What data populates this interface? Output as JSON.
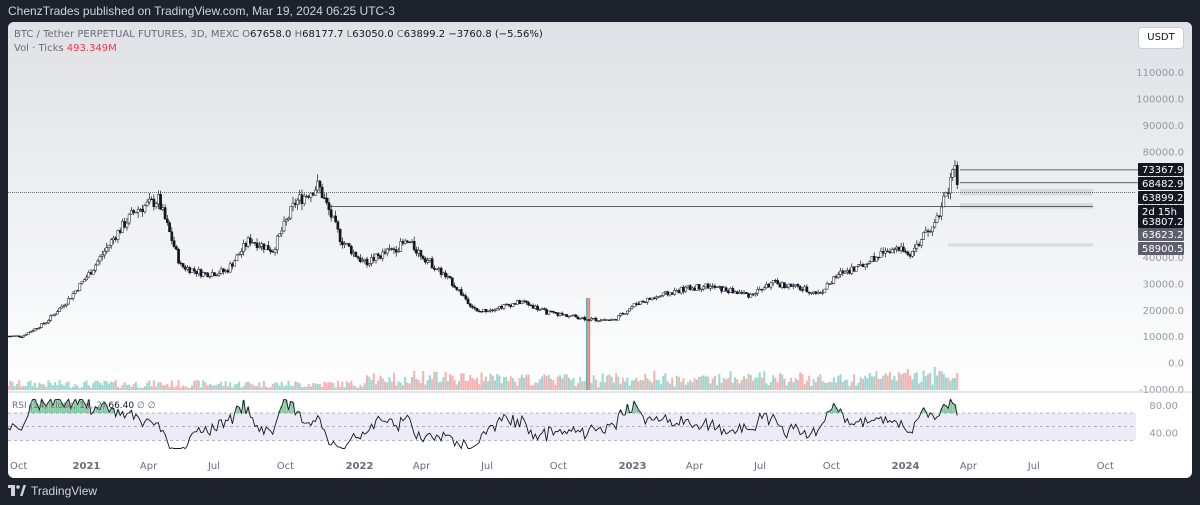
{
  "publisher": "ChenzTrades published on TradingView.com, Mar 19, 2024 06:25 UTC-3",
  "legend": {
    "symbol": "BTC / Tether PERPETUAL FUTURES, 3D, MEXC",
    "open_label": "O",
    "open": "67658.0",
    "high_label": "H",
    "high": "68177.7",
    "low_label": "L",
    "low": "63050.0",
    "close_label": "C",
    "close": "63899.2",
    "change": "−3760.8 (−5.56%)",
    "vol_label": "Vol · Ticks",
    "vol_value": "493.349M"
  },
  "currency_button": "USDT",
  "rsi_legend": {
    "label": "RSI (14, close, 14, 2)",
    "value": "66.40",
    "extra": "∅ ∅"
  },
  "footer_brand": "TradingView",
  "colors": {
    "up": "#26a69a",
    "down": "#ef5350",
    "candle": "#131722",
    "bg_top": "#dfe1e6",
    "bg_bottom": "#ffffff",
    "rsi_band": "#e5e2f5",
    "rsi_fill": "#55b27a",
    "tag_bg": "#131722",
    "tag_gray": "#5d606b"
  },
  "chart_data": {
    "type": "candlestick",
    "symbol": "BTC / Tether PERPETUAL FUTURES",
    "timeframe": "3D",
    "y_axis_ticks": [
      "110000.0",
      "100000.0",
      "90000.0",
      "80000.0",
      "70000.0",
      "60000.0",
      "50000.0",
      "40000.0",
      "30000.0",
      "20000.0",
      "10000.0",
      "0.0",
      "-10000.0"
    ],
    "ylim": [
      -10000,
      118000
    ],
    "x_axis_ticks": [
      "Oct",
      "2021",
      "Apr",
      "Jul",
      "Oct",
      "2022",
      "Apr",
      "Jul",
      "Oct",
      "2023",
      "Apr",
      "Jul",
      "Oct",
      "2024",
      "Apr",
      "Jul",
      "Oct"
    ],
    "price_tags": [
      {
        "value": "73367.9",
        "style": "dark"
      },
      {
        "value": "68482.9",
        "style": "dark"
      },
      {
        "value": "63899.2",
        "style": "dark"
      },
      {
        "value": "2d 15h",
        "style": "dark"
      },
      {
        "value": "63807.2",
        "style": "dark"
      },
      {
        "value": "63623.2",
        "style": "gray"
      },
      {
        "value": "58900.5",
        "style": "gray"
      }
    ],
    "horizontal_levels": [
      73367.9,
      68482.9,
      64000,
      59500
    ],
    "zones": [
      {
        "from": 63700,
        "to": 66200
      },
      {
        "from": 58700,
        "to": 60800
      },
      {
        "from": 44500,
        "to": 45500
      }
    ],
    "price_path": [
      [
        "2020-10",
        10400
      ],
      [
        "2020-11",
        15500
      ],
      [
        "2020-12",
        24000
      ],
      [
        "2021-01",
        35000
      ],
      [
        "2021-02",
        48000
      ],
      [
        "2021-03",
        58000
      ],
      [
        "2021-04",
        62000
      ],
      [
        "2021-05",
        37000
      ],
      [
        "2021-06",
        34000
      ],
      [
        "2021-07",
        35000
      ],
      [
        "2021-08",
        47000
      ],
      [
        "2021-09",
        43000
      ],
      [
        "2021-10",
        61000
      ],
      [
        "2021-11",
        67500
      ],
      [
        "2021-12",
        47000
      ],
      [
        "2022-01",
        38000
      ],
      [
        "2022-03",
        46000
      ],
      [
        "2022-05",
        30000
      ],
      [
        "2022-06",
        19500
      ],
      [
        "2022-08",
        23500
      ],
      [
        "2022-09",
        19500
      ],
      [
        "2022-11",
        16800
      ],
      [
        "2022-12",
        16500
      ],
      [
        "2023-01",
        23000
      ],
      [
        "2023-03",
        28000
      ],
      [
        "2023-04",
        29500
      ],
      [
        "2023-06",
        26000
      ],
      [
        "2023-07",
        30500
      ],
      [
        "2023-08",
        29000
      ],
      [
        "2023-09",
        26500
      ],
      [
        "2023-10",
        34500
      ],
      [
        "2023-11",
        37500
      ],
      [
        "2023-12",
        43500
      ],
      [
        "2024-01",
        42000
      ],
      [
        "2024-02",
        52000
      ],
      [
        "2024-03",
        73367.9
      ],
      [
        "2024-03-19",
        63899.2
      ]
    ],
    "volume_spike": "2022-11",
    "rsi": {
      "levels": [
        "80.00",
        "40.00"
      ],
      "bands": [
        70,
        30
      ],
      "current": 66.4
    }
  }
}
